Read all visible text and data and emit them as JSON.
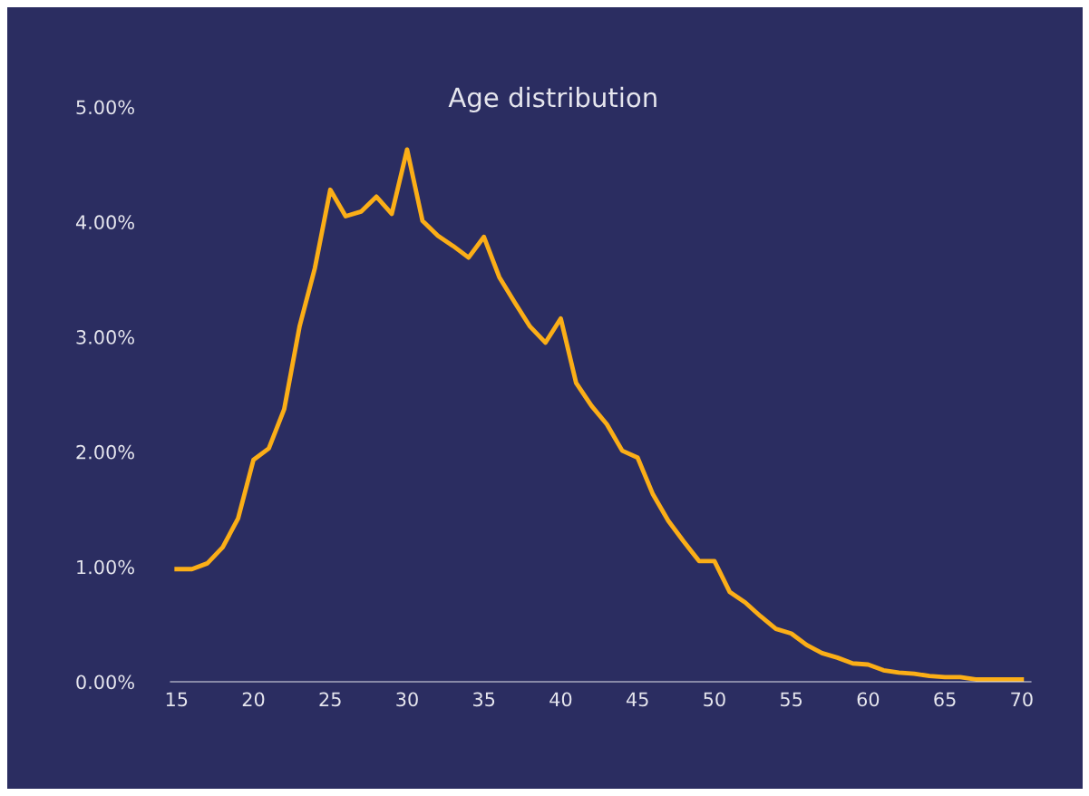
{
  "chart_data": {
    "type": "line",
    "title": "Age distribution",
    "x": [
      15,
      16,
      17,
      18,
      19,
      20,
      21,
      22,
      23,
      24,
      25,
      26,
      27,
      28,
      29,
      30,
      31,
      32,
      33,
      34,
      35,
      36,
      37,
      38,
      39,
      40,
      41,
      42,
      43,
      44,
      45,
      46,
      47,
      48,
      49,
      50,
      51,
      52,
      53,
      54,
      55,
      56,
      57,
      58,
      59,
      60,
      61,
      62,
      63,
      64,
      65,
      66,
      67,
      68,
      69,
      70
    ],
    "series": [
      {
        "color": "#fbae17",
        "values": [
          0.98,
          0.98,
          1.03,
          1.17,
          1.42,
          1.93,
          2.03,
          2.37,
          3.09,
          3.6,
          4.28,
          4.05,
          4.09,
          4.22,
          4.07,
          4.63,
          4.01,
          3.88,
          3.79,
          3.69,
          3.87,
          3.52,
          3.3,
          3.09,
          2.95,
          3.16,
          2.6,
          2.4,
          2.24,
          2.01,
          1.95,
          1.63,
          1.4,
          1.22,
          1.05,
          1.05,
          0.78,
          0.69,
          0.57,
          0.46,
          0.42,
          0.32,
          0.25,
          0.21,
          0.16,
          0.15,
          0.1,
          0.08,
          0.07,
          0.05,
          0.04,
          0.04,
          0.02,
          0.02,
          0.02,
          0.02
        ]
      }
    ],
    "xlim": [
      14.6,
      70.6
    ],
    "xticks": [
      15,
      20,
      25,
      30,
      35,
      40,
      45,
      50,
      55,
      60,
      65,
      70
    ],
    "ylim": [
      0,
      5
    ],
    "yticks": [
      {
        "value": 0,
        "label": "0.00%"
      },
      {
        "value": 1,
        "label": "1.00%"
      },
      {
        "value": 2,
        "label": "2.00%"
      },
      {
        "value": 3,
        "label": "3.00%"
      },
      {
        "value": 4,
        "label": "4.00%"
      },
      {
        "value": 5,
        "label": "5.00%"
      }
    ],
    "marker": "none",
    "line_style": "solid"
  }
}
